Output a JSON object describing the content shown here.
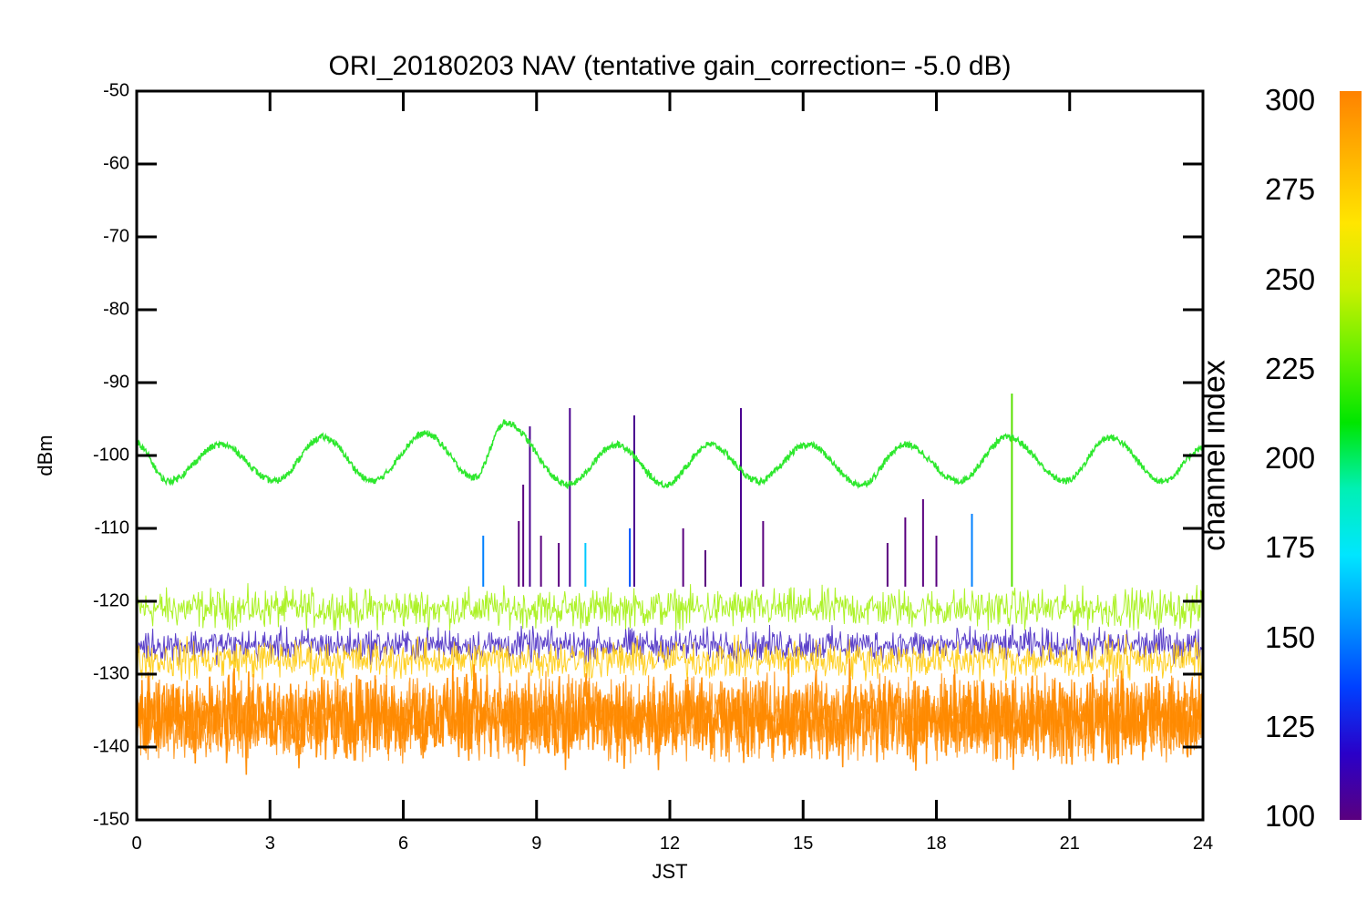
{
  "chart_data": {
    "type": "line",
    "title": "ORI_20180203 NAV (tentative gain_correction= -5.0 dB)",
    "xlabel": "JST",
    "ylabel": "dBm",
    "xlim": [
      0,
      24
    ],
    "ylim": [
      -150,
      -50
    ],
    "x_ticks": [
      "0",
      "3",
      "6",
      "9",
      "12",
      "15",
      "18",
      "21",
      "24"
    ],
    "y_ticks": [
      "-50",
      "-60",
      "-70",
      "-80",
      "-90",
      "-100",
      "-110",
      "-120",
      "-130",
      "-140",
      "-150"
    ],
    "grid": false,
    "colorbar": {
      "label": "channel index",
      "range": [
        100,
        300
      ],
      "ticks": [
        "300",
        "275",
        "250",
        "225",
        "200",
        "175",
        "150",
        "125",
        "100"
      ],
      "colormap": [
        "#5a007f",
        "#2a00c8",
        "#0040ff",
        "#0096ff",
        "#00e6ff",
        "#00f0b4",
        "#00e600",
        "#64f000",
        "#c8f000",
        "#ffe600",
        "#ffb400",
        "#ff8200"
      ]
    },
    "series": [
      {
        "color": "#2ee82e",
        "x": [
          0,
          0.7,
          1.9,
          3.1,
          4.2,
          5.3,
          6.5,
          7.6,
          8.3,
          9.7,
          10.8,
          11.9,
          12.9,
          14.0,
          15.1,
          16.3,
          17.3,
          18.5,
          19.6,
          20.9,
          21.9,
          23.1,
          24
        ],
        "values": [
          -98.5,
          -103.5,
          -98.5,
          -103.5,
          -97.5,
          -103.5,
          -97,
          -103,
          -95.5,
          -104,
          -98.5,
          -104,
          -98.5,
          -103.5,
          -98.5,
          -104,
          -98.5,
          -103.5,
          -97.5,
          -103.5,
          -97.5,
          -103.5,
          -99
        ],
        "annotation": "oscillating channel near -100 dBm with ~2.2 h period"
      },
      {
        "color": "#9ef000",
        "band_center": -121,
        "band_halfwidth": 3,
        "values_range": [
          -124,
          -117
        ],
        "annotation": "upper noise band"
      },
      {
        "color": "#4020c0",
        "band_center": -126,
        "band_halfwidth": 2.5,
        "values_range": [
          -129,
          -123
        ],
        "annotation": "blue/purple noise band"
      },
      {
        "color": "#ffc800",
        "band_center": -128,
        "band_halfwidth": 3,
        "values_range": [
          -131,
          -124
        ],
        "annotation": "yellow noise band"
      },
      {
        "color": "#ff8a00",
        "band_center": -136,
        "band_halfwidth": 6.5,
        "values_range": [
          -146,
          -127
        ],
        "annotation": "dominant orange noise band"
      }
    ],
    "spikes": [
      {
        "x": 8.85,
        "y": -96,
        "color": "#4a0090"
      },
      {
        "x": 9.75,
        "y": -93.5,
        "color": "#4a0090"
      },
      {
        "x": 11.2,
        "y": -94.5,
        "color": "#4a0090"
      },
      {
        "x": 13.6,
        "y": -93.5,
        "color": "#4a0090"
      },
      {
        "x": 19.7,
        "y": -91.5,
        "color": "#5ae000"
      },
      {
        "x": 8.7,
        "y": -104,
        "color": "#5a007f"
      },
      {
        "x": 7.8,
        "y": -111,
        "color": "#0080ff"
      },
      {
        "x": 8.6,
        "y": -109,
        "color": "#5a007f"
      },
      {
        "x": 9.1,
        "y": -111,
        "color": "#5a007f"
      },
      {
        "x": 9.5,
        "y": -112,
        "color": "#5a007f"
      },
      {
        "x": 10.1,
        "y": -112,
        "color": "#00c8ff"
      },
      {
        "x": 11.1,
        "y": -110,
        "color": "#0050ff"
      },
      {
        "x": 12.3,
        "y": -110,
        "color": "#5a007f"
      },
      {
        "x": 12.8,
        "y": -113,
        "color": "#5a007f"
      },
      {
        "x": 14.1,
        "y": -109,
        "color": "#5a007f"
      },
      {
        "x": 16.9,
        "y": -112,
        "color": "#5a007f"
      },
      {
        "x": 17.3,
        "y": -108.5,
        "color": "#5a007f"
      },
      {
        "x": 17.7,
        "y": -106,
        "color": "#5a007f"
      },
      {
        "x": 18.0,
        "y": -111,
        "color": "#5a007f"
      },
      {
        "x": 18.8,
        "y": -108,
        "color": "#0080ff"
      }
    ]
  }
}
